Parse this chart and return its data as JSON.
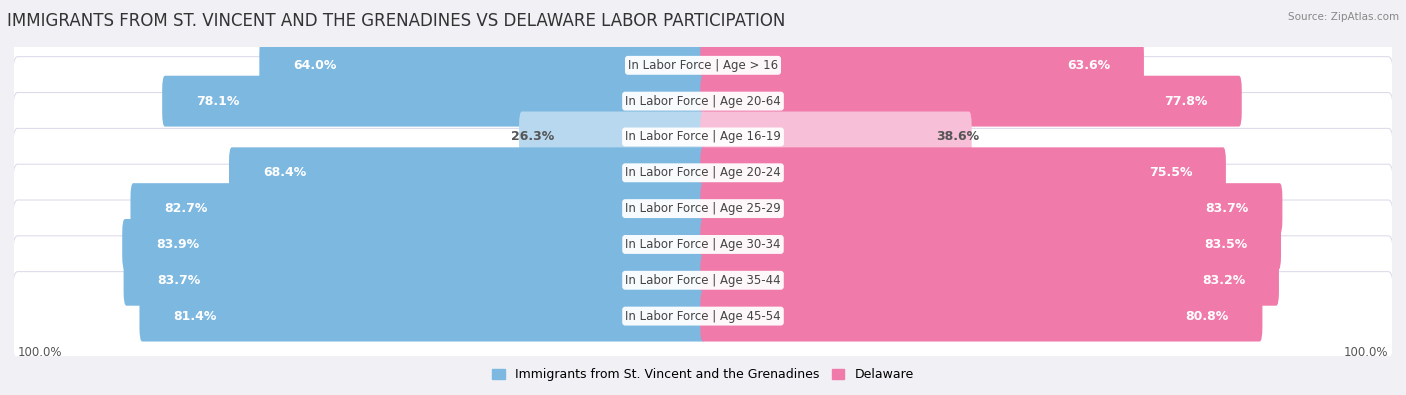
{
  "title": "IMMIGRANTS FROM ST. VINCENT AND THE GRENADINES VS DELAWARE LABOR PARTICIPATION",
  "source": "Source: ZipAtlas.com",
  "categories": [
    "In Labor Force | Age > 16",
    "In Labor Force | Age 20-64",
    "In Labor Force | Age 16-19",
    "In Labor Force | Age 20-24",
    "In Labor Force | Age 25-29",
    "In Labor Force | Age 30-34",
    "In Labor Force | Age 35-44",
    "In Labor Force | Age 45-54"
  ],
  "immigrants_values": [
    64.0,
    78.1,
    26.3,
    68.4,
    82.7,
    83.9,
    83.7,
    81.4
  ],
  "delaware_values": [
    63.6,
    77.8,
    38.6,
    75.5,
    83.7,
    83.5,
    83.2,
    80.8
  ],
  "immigrants_color": "#7db8e0",
  "delaware_color": "#f07aaa",
  "immigrants_light_color": "#b8d8f0",
  "delaware_light_color": "#f8c0d8",
  "legend_immigrants": "Immigrants from St. Vincent and the Grenadines",
  "legend_delaware": "Delaware",
  "axis_label_left": "100.0%",
  "axis_label_right": "100.0%",
  "max_val": 100.0,
  "title_fontsize": 12,
  "bar_fontsize": 9,
  "category_fontsize": 8.5,
  "bg_color": "#f0f0f5",
  "row_bg_color": "#ffffff",
  "row_edge_color": "#d8d8e8"
}
